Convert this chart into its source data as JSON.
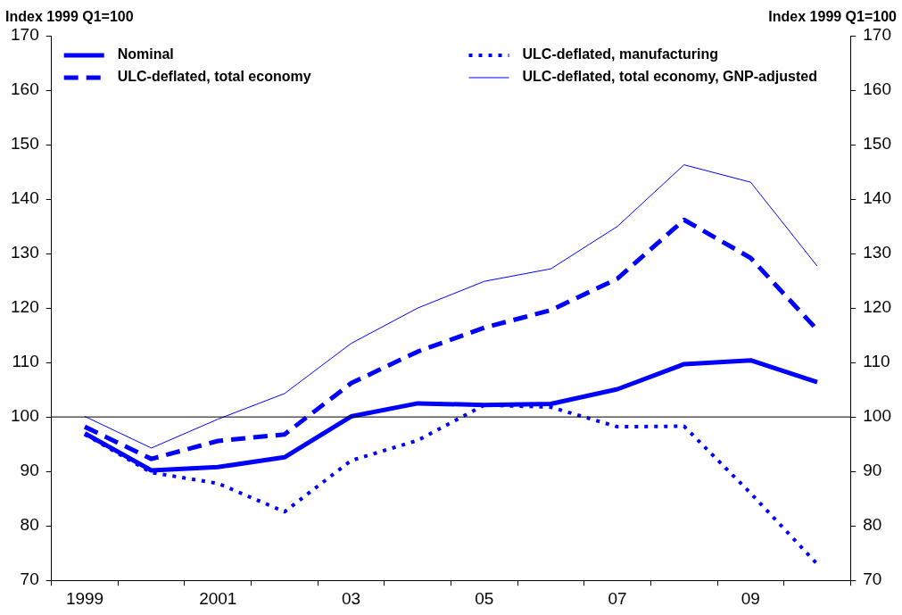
{
  "chart_data": {
    "type": "line",
    "ylabel": "Index 1999 Q1=100",
    "y2label": "Index 1999 Q1=100",
    "categories": [
      "1999",
      null,
      "2001",
      null,
      "03",
      null,
      "05",
      null,
      "07",
      null,
      "09",
      null
    ],
    "series": [
      {
        "name": "Nominal",
        "color": "#0000ff",
        "line_style": "solid",
        "values": [
          97.0,
          90.2,
          90.8,
          92.6,
          100.1,
          102.5,
          102.2,
          102.4,
          105.1,
          109.7,
          110.4,
          106.4
        ]
      },
      {
        "name": "ULC-deflated, total economy",
        "color": "#0000ff",
        "line_style": "dashed",
        "values": [
          98.2,
          92.3,
          95.6,
          96.8,
          106.2,
          112.0,
          116.4,
          119.6,
          125.4,
          136.2,
          129.2,
          116.0
        ]
      },
      {
        "name": "ULC-deflated, manufacturing",
        "color": "#0000ff",
        "line_style": "dotted",
        "values": [
          96.8,
          89.8,
          87.8,
          82.6,
          92.0,
          95.7,
          102.2,
          101.8,
          98.2,
          98.3,
          86.0,
          73.0
        ]
      },
      {
        "name": "ULC-deflated, total economy, GNP-adjusted",
        "color": "#0000ff",
        "line_style": "solid",
        "values": [
          100.1,
          94.3,
          99.6,
          104.3,
          113.5,
          120.0,
          124.9,
          127.2,
          135.0,
          146.3,
          143.1,
          127.7
        ]
      }
    ],
    "ylim": [
      70,
      170
    ],
    "yticks": [
      70,
      80,
      90,
      100,
      110,
      120,
      130,
      140,
      150,
      160,
      170
    ],
    "y2lim": [
      70,
      170
    ],
    "y2ticks": [
      70,
      80,
      90,
      100,
      110,
      120,
      130,
      140,
      150,
      160,
      170
    ],
    "ref_lines": [
      {
        "axis": "y",
        "value": 100,
        "color": "#000000"
      }
    ],
    "grid": false,
    "legend": "top",
    "marker": "none"
  }
}
